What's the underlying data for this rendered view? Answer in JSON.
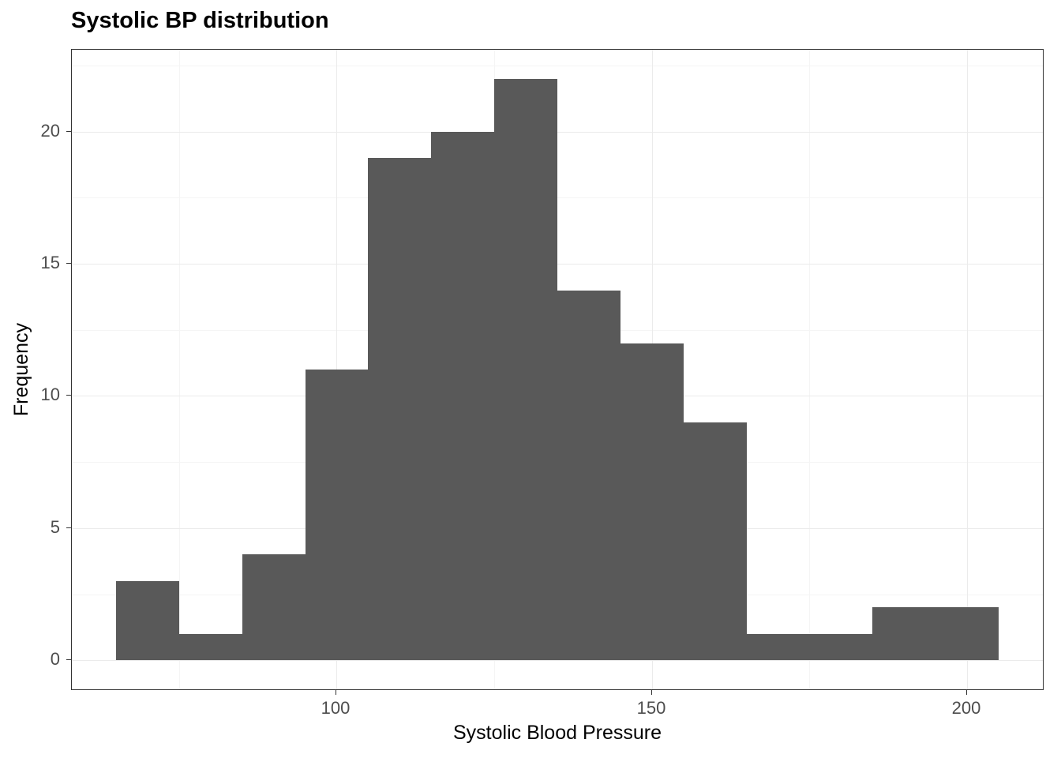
{
  "chart_data": {
    "type": "bar",
    "subtype": "histogram",
    "title": "Systolic BP distribution",
    "xlabel": "Systolic Blood Pressure",
    "ylabel": "Frequency",
    "bin_start": 65,
    "bin_width": 10,
    "bin_edges": [
      65,
      75,
      85,
      95,
      105,
      115,
      125,
      135,
      145,
      155,
      165,
      175,
      185,
      195,
      205
    ],
    "counts": [
      3,
      1,
      4,
      11,
      19,
      20,
      22,
      14,
      12,
      9,
      1,
      1,
      2,
      2
    ],
    "x_major_ticks": [
      100,
      150,
      200
    ],
    "x_minor_ticks": [
      75,
      125,
      175
    ],
    "y_major_ticks": [
      0,
      5,
      10,
      15,
      20
    ],
    "y_minor_ticks": [
      2.5,
      7.5,
      12.5,
      17.5,
      22.5
    ],
    "xlim": [
      58,
      212
    ],
    "ylim": [
      -1.1,
      23.1
    ],
    "grid": "on",
    "legend": "none",
    "colors": {
      "bar_fill": "#595959",
      "panel_border": "#333333",
      "grid_major": "#ebebeb",
      "grid_minor": "#f5f5f5",
      "tick_label": "#4d4d4d",
      "text": "#000000",
      "background": "#ffffff"
    }
  }
}
